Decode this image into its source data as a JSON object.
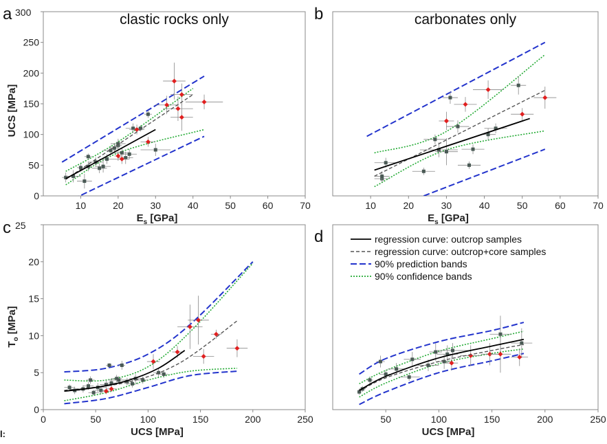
{
  "chart_data": [
    {
      "type": "scatter",
      "panel_letter": "a",
      "title": "clastic rocks only",
      "xlabel_main": "E",
      "xlabel_sub": "s",
      "xlabel_unit": " [GPa]",
      "ylabel": "UCS [MPa]",
      "xlim": [
        0,
        70
      ],
      "ylim": [
        0,
        300
      ],
      "xticks": [
        10,
        20,
        30,
        40,
        50,
        60,
        70
      ],
      "yticks": [
        0,
        50,
        100,
        150,
        200,
        250,
        300
      ],
      "series": [
        {
          "type": "outcrop",
          "x": [
            6,
            8,
            10,
            11,
            12,
            12,
            14,
            15,
            16,
            17,
            18,
            19,
            20,
            20,
            21,
            22,
            23,
            24,
            26,
            28,
            30
          ],
          "y": [
            30,
            32,
            46,
            24,
            48,
            64,
            55,
            45,
            48,
            60,
            74,
            78,
            82,
            85,
            70,
            62,
            68,
            110,
            110,
            133,
            75
          ],
          "xerr": [
            1,
            2,
            1,
            2,
            1,
            1,
            2,
            2,
            2,
            2,
            2,
            1,
            1,
            2,
            2,
            2,
            2,
            2,
            1,
            1,
            4
          ],
          "yerr": [
            8,
            10,
            6,
            12,
            8,
            5,
            8,
            8,
            10,
            8,
            8,
            8,
            8,
            8,
            8,
            10,
            8,
            8,
            5,
            6,
            10
          ]
        },
        {
          "type": "core",
          "x": [
            20,
            21,
            25,
            28,
            33,
            35,
            36,
            37,
            37,
            43
          ],
          "y": [
            65,
            60,
            108,
            88,
            148,
            187,
            142,
            165,
            128,
            153
          ],
          "xerr": [
            1,
            2,
            2,
            2,
            3,
            3,
            4,
            3,
            3,
            5
          ],
          "yerr": [
            8,
            8,
            8,
            8,
            15,
            30,
            20,
            18,
            22,
            12
          ]
        }
      ],
      "regression_outcrop": [
        [
          6,
          28
        ],
        [
          30,
          108
        ]
      ],
      "regression_all": [
        [
          6,
          27
        ],
        [
          40,
          165
        ]
      ],
      "prediction_band": {
        "upper": [
          [
            5,
            55
          ],
          [
            43,
            195
          ]
        ],
        "lower": [
          [
            8,
            -5
          ],
          [
            43,
            97
          ]
        ]
      },
      "confidence_band": {
        "upper": [
          [
            6,
            40
          ],
          [
            20,
            88
          ],
          [
            40,
            175
          ]
        ],
        "lower": [
          [
            6,
            18
          ],
          [
            20,
            70
          ],
          [
            43,
            108
          ]
        ]
      }
    },
    {
      "type": "scatter",
      "panel_letter": "b",
      "title": "carbonates only",
      "xlabel_main": "E",
      "xlabel_sub": "s",
      "xlabel_unit": " [GPa]",
      "xlim": [
        0,
        70
      ],
      "ylim": [
        0,
        300
      ],
      "xticks": [
        10,
        20,
        30,
        40,
        50,
        60,
        70
      ],
      "series": [
        {
          "type": "outcrop",
          "x": [
            13,
            13,
            14,
            24,
            27,
            28,
            30,
            31,
            33,
            36,
            37,
            41,
            43,
            49
          ],
          "y": [
            28,
            32,
            54,
            40,
            92,
            75,
            72,
            160,
            113,
            50,
            76,
            100,
            110,
            180
          ],
          "xerr": [
            2,
            2,
            3,
            3,
            3,
            5,
            3,
            2,
            3,
            3,
            3,
            2,
            3,
            2
          ],
          "yerr": [
            6,
            8,
            8,
            6,
            8,
            12,
            22,
            10,
            10,
            6,
            8,
            10,
            8,
            15
          ]
        },
        {
          "type": "core",
          "x": [
            30,
            35,
            41,
            50,
            56
          ],
          "y": [
            122,
            149,
            173,
            133,
            160
          ],
          "xerr": [
            2,
            3,
            4,
            3,
            3
          ],
          "yerr": [
            15,
            12,
            15,
            10,
            18
          ]
        }
      ],
      "regression_outcrop": [
        [
          11,
          42
        ],
        [
          52,
          126
        ]
      ],
      "regression_all": [
        [
          11,
          32
        ],
        [
          56,
          172
        ]
      ],
      "prediction_band": {
        "upper": [
          [
            9,
            97
          ],
          [
            56,
            250
          ]
        ],
        "lower": [
          [
            24,
            0
          ],
          [
            56,
            76
          ]
        ]
      },
      "confidence_band": {
        "upper": [
          [
            11,
            70
          ],
          [
            30,
            105
          ],
          [
            56,
            230
          ]
        ],
        "lower": [
          [
            11,
            15
          ],
          [
            30,
            75
          ],
          [
            56,
            106
          ]
        ]
      }
    },
    {
      "type": "scatter",
      "panel_letter": "c",
      "xlabel": "UCS [MPa]",
      "ylabel_main": "T",
      "ylabel_sub": "o",
      "ylabel_unit": " [MPa]",
      "xlim": [
        0,
        250
      ],
      "ylim": [
        0,
        25
      ],
      "xticks": [
        0,
        50,
        100,
        150,
        200,
        250
      ],
      "yticks": [
        0,
        5,
        10,
        15,
        20,
        25
      ],
      "series": [
        {
          "type": "outcrop",
          "x": [
            25,
            30,
            38,
            43,
            45,
            48,
            52,
            55,
            60,
            63,
            65,
            70,
            72,
            75,
            80,
            85,
            88,
            95,
            110,
            115
          ],
          "y": [
            3.0,
            2.6,
            2.8,
            3.2,
            4.0,
            2.3,
            3.0,
            2.6,
            3.4,
            6.0,
            3.6,
            4.2,
            4.0,
            6.0,
            3.8,
            3.5,
            4.2,
            4.0,
            5.0,
            4.8
          ],
          "xerr": [
            5,
            5,
            6,
            5,
            4,
            5,
            8,
            6,
            6,
            3,
            6,
            5,
            10,
            3,
            5,
            6,
            6,
            5,
            5,
            4
          ],
          "yerr": [
            0.4,
            0.5,
            0.5,
            0.5,
            0.5,
            0.4,
            0.6,
            0.5,
            0.5,
            0.3,
            0.6,
            0.5,
            0.5,
            0.6,
            0.5,
            0.5,
            0.6,
            0.5,
            0.6,
            0.5
          ],
          "core_x": [
            60,
            65,
            105,
            128,
            140,
            148,
            153,
            165,
            185
          ],
          "core_y": [
            2.5,
            2.8,
            6.5,
            7.8,
            11.2,
            12.1,
            7.2,
            10.2,
            8.3
          ]
        },
        {
          "type": "core",
          "x": [
            60,
            65,
            105,
            128,
            140,
            148,
            153,
            165,
            185
          ],
          "y": [
            2.5,
            2.8,
            6.5,
            7.8,
            11.2,
            12.1,
            7.2,
            10.2,
            8.3
          ],
          "xerr": [
            5,
            5,
            6,
            5,
            12,
            10,
            10,
            5,
            10
          ],
          "yerr": [
            0.4,
            0.4,
            1.0,
            0.8,
            3.0,
            3.3,
            1.0,
            0.6,
            1.2
          ]
        }
      ],
      "regression_outcrop": [
        [
          20,
          2.5
        ],
        [
          50,
          3.0
        ],
        [
          80,
          3.9
        ],
        [
          110,
          5.6
        ],
        [
          135,
          8.0
        ]
      ],
      "regression_all": [
        [
          20,
          2.6
        ],
        [
          80,
          3.7
        ],
        [
          130,
          6.3
        ],
        [
          185,
          12.0
        ]
      ],
      "prediction_band": {
        "upper": [
          [
            20,
            5.1
          ],
          [
            60,
            5.6
          ],
          [
            100,
            7.5
          ],
          [
            140,
            11.5
          ],
          [
            200,
            20
          ]
        ],
        "lower": [
          [
            20,
            0.8
          ],
          [
            60,
            1.5
          ],
          [
            100,
            3.0
          ],
          [
            140,
            4.6
          ],
          [
            185,
            5.2
          ]
        ]
      },
      "confidence_band": {
        "upper": [
          [
            20,
            4.0
          ],
          [
            60,
            4.0
          ],
          [
            100,
            5.8
          ],
          [
            140,
            10.5
          ],
          [
            200,
            19.8
          ]
        ],
        "lower": [
          [
            20,
            1.2
          ],
          [
            60,
            2.3
          ],
          [
            100,
            4.0
          ],
          [
            140,
            5.2
          ],
          [
            185,
            5.6
          ]
        ]
      }
    },
    {
      "type": "scatter",
      "panel_letter": "d",
      "xlabel": "UCS [MPa]",
      "xlim": [
        0,
        250
      ],
      "ylim": [
        0,
        25
      ],
      "xticks": [
        50,
        100,
        150,
        200,
        250
      ],
      "legend": [
        {
          "label": "regression curve: outcrop samples",
          "style": "solid"
        },
        {
          "label": "regression curve: outcrop+core samples",
          "style": "dashed"
        },
        {
          "label": "90% prediction bands",
          "style": "blue-dash"
        },
        {
          "label": "90% confidence bands",
          "style": "green-dot"
        }
      ],
      "series": [
        {
          "type": "outcrop",
          "x": [
            25,
            28,
            35,
            45,
            50,
            60,
            72,
            75,
            90,
            97,
            105,
            108,
            113,
            158,
            178
          ],
          "y": [
            2.4,
            2.8,
            4.0,
            6.5,
            4.8,
            5.5,
            4.4,
            6.8,
            6.0,
            7.8,
            6.5,
            7.5,
            8.0,
            10.2,
            9.0
          ],
          "xerr": [
            2,
            3,
            3,
            4,
            6,
            8,
            10,
            8,
            10,
            6,
            8,
            10,
            15,
            10,
            10
          ],
          "yerr": [
            0.4,
            0.4,
            0.5,
            0.8,
            0.6,
            0.8,
            0.5,
            1.0,
            0.8,
            1.2,
            1.0,
            1.2,
            1.0,
            2.5,
            2.0
          ]
        },
        {
          "type": "core",
          "x": [
            112,
            130,
            148,
            158,
            176
          ],
          "y": [
            6.3,
            7.3,
            7.5,
            7.5,
            7.1
          ],
          "xerr": [
            6,
            10,
            8,
            10,
            8
          ],
          "yerr": [
            1.0,
            1.4,
            1.5,
            2.5,
            1.2
          ]
        }
      ],
      "regression_outcrop": [
        [
          25,
          2.6
        ],
        [
          50,
          4.5
        ],
        [
          100,
          7.0
        ],
        [
          150,
          8.6
        ],
        [
          180,
          9.5
        ]
      ],
      "regression_all": [
        [
          25,
          2.5
        ],
        [
          50,
          4.3
        ],
        [
          100,
          6.5
        ],
        [
          150,
          8.0
        ],
        [
          180,
          8.8
        ]
      ],
      "prediction_band": {
        "upper": [
          [
            25,
            4.8
          ],
          [
            50,
            6.9
          ],
          [
            100,
            9.2
          ],
          [
            150,
            10.7
          ],
          [
            180,
            11.8
          ]
        ],
        "lower": [
          [
            25,
            0.7
          ],
          [
            50,
            2.4
          ],
          [
            100,
            5.0
          ],
          [
            150,
            6.6
          ],
          [
            180,
            7.6
          ]
        ]
      },
      "confidence_band": {
        "upper": [
          [
            25,
            3.5
          ],
          [
            50,
            5.3
          ],
          [
            100,
            7.9
          ],
          [
            150,
            9.6
          ],
          [
            180,
            10.6
          ]
        ],
        "lower": [
          [
            25,
            1.7
          ],
          [
            50,
            3.6
          ],
          [
            100,
            6.2
          ],
          [
            150,
            7.6
          ],
          [
            180,
            8.2
          ]
        ]
      }
    }
  ],
  "stray_label": "l:",
  "colors": {
    "outcrop": "#4a5a55",
    "core": "#e02020",
    "prediction": "#2233cc",
    "confidence": "#22aa33",
    "axis": "#888888"
  }
}
